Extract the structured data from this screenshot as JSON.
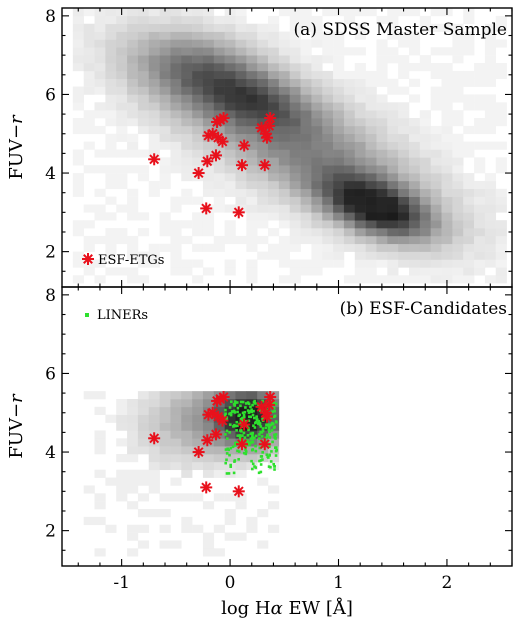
{
  "chart_data": [
    {
      "type": "heatmap+scatter",
      "panel": "a",
      "title": "(a) SDSS Master Sample",
      "xlabel": "log Hα EW [Å]",
      "ylabel": "FUV−r",
      "xlim": [
        -1.55,
        2.6
      ],
      "ylim": [
        1.1,
        8.2
      ],
      "x_ticks": [
        -1,
        0,
        1,
        2
      ],
      "y_ticks": [
        2,
        4,
        6,
        8
      ],
      "colors": {
        "density": "#202020",
        "esf": "#e8111c"
      },
      "density_blobs": [
        {
          "x": 0.6,
          "y": 4.8,
          "sx": 0.9,
          "sy": 1.5,
          "rho": -0.75,
          "w": 0.55
        },
        {
          "x": 1.35,
          "y": 3.1,
          "sx": 0.35,
          "sy": 0.55,
          "rho": -0.5,
          "w": 0.9
        },
        {
          "x": -0.25,
          "y": 6.6,
          "sx": 0.45,
          "sy": 0.7,
          "rho": -0.3,
          "w": 0.45
        },
        {
          "x": 0.3,
          "y": 5.8,
          "sx": 0.35,
          "sy": 0.5,
          "rho": -0.4,
          "w": 0.3
        }
      ],
      "density_box": [
        -1.45,
        2.55,
        1.2,
        8.1
      ],
      "legend": [
        {
          "label": "ESF-ETGs",
          "marker": "asterisk",
          "color": "#e8111c"
        }
      ],
      "series": [
        {
          "name": "ESF-ETGs",
          "marker": "asterisk",
          "x": [
            -0.7,
            -0.29,
            -0.21,
            -0.22,
            -0.2,
            -0.16,
            -0.13,
            -0.12,
            -0.11,
            -0.09,
            -0.07,
            -0.06,
            0.08,
            0.11,
            0.13,
            0.29,
            0.32,
            0.33,
            0.34,
            0.36,
            0.37
          ],
          "y": [
            4.35,
            4.0,
            4.3,
            3.1,
            4.95,
            5.0,
            4.45,
            5.3,
            4.9,
            5.35,
            4.8,
            5.4,
            3.0,
            4.2,
            4.7,
            5.15,
            4.2,
            5.0,
            4.9,
            5.2,
            5.4
          ]
        }
      ]
    },
    {
      "type": "heatmap+scatter",
      "panel": "b",
      "title": "(b) ESF-Candidates",
      "xlabel": "log Hα EW [Å]",
      "ylabel": "FUV−r",
      "xlim": [
        -1.55,
        2.6
      ],
      "ylim": [
        1.1,
        8.2
      ],
      "x_ticks": [
        -1,
        0,
        1,
        2
      ],
      "y_ticks": [
        2,
        4,
        6,
        8
      ],
      "colors": {
        "density": "#202020",
        "liner": "#2ee02e",
        "esf": "#e8111c"
      },
      "density_blobs": [
        {
          "x": 0.2,
          "y": 4.9,
          "sx": 0.22,
          "sy": 0.55,
          "rho": 0.0,
          "w": 0.9
        },
        {
          "x": -0.15,
          "y": 4.9,
          "sx": 0.35,
          "sy": 0.75,
          "rho": 0.0,
          "w": 0.35
        },
        {
          "x": -0.6,
          "y": 4.6,
          "sx": 0.35,
          "sy": 0.8,
          "rho": 0.0,
          "w": 0.12
        }
      ],
      "density_box": [
        -1.35,
        0.45,
        1.35,
        5.5
      ],
      "legend": [
        {
          "label": "LINERs",
          "marker": "dot",
          "color": "#2ee02e"
        }
      ],
      "series": [
        {
          "name": "LINERs",
          "marker": "dot",
          "region": {
            "xlim": [
              -0.05,
              0.43
            ],
            "ylim": [
              3.4,
              5.3
            ],
            "count": 260
          }
        },
        {
          "name": "ESF-ETGs",
          "marker": "asterisk",
          "x": [
            -0.7,
            -0.29,
            -0.21,
            -0.22,
            -0.2,
            -0.16,
            -0.13,
            -0.12,
            -0.11,
            -0.09,
            -0.07,
            -0.06,
            0.08,
            0.11,
            0.13,
            0.29,
            0.32,
            0.33,
            0.34,
            0.36,
            0.37
          ],
          "y": [
            4.35,
            4.0,
            4.3,
            3.1,
            4.95,
            5.0,
            4.45,
            5.3,
            4.9,
            5.35,
            4.8,
            5.4,
            3.0,
            4.2,
            4.7,
            5.15,
            4.2,
            5.0,
            4.9,
            5.2,
            5.4
          ]
        }
      ]
    }
  ]
}
